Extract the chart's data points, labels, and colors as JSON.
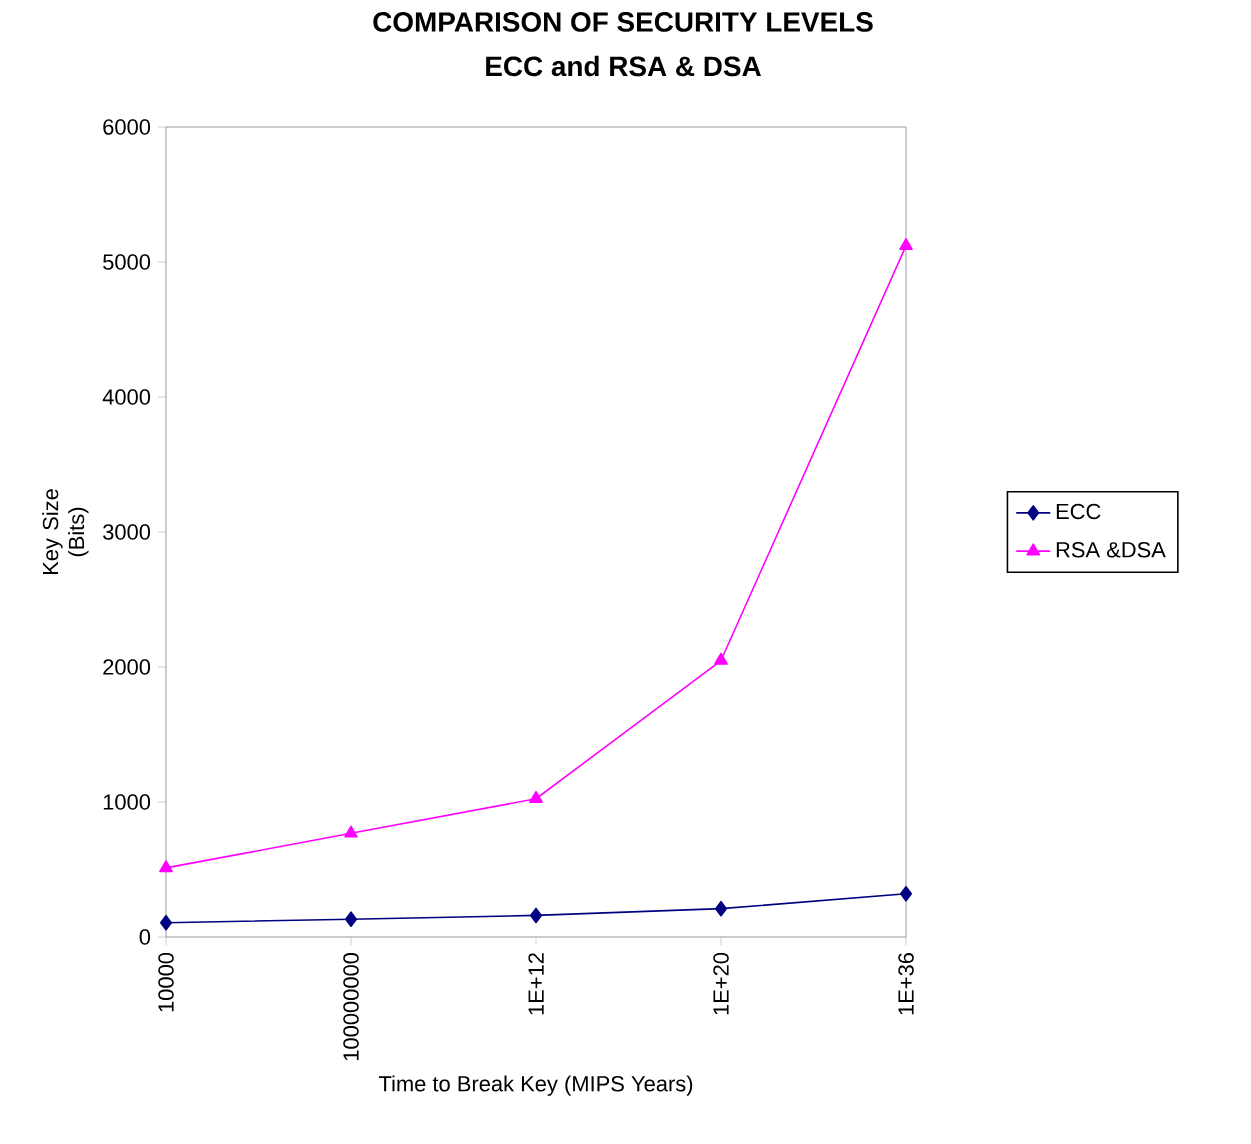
{
  "chart_data": {
    "type": "line",
    "title": "COMPARISON OF SECURITY LEVELS",
    "subtitle": "ECC and RSA & DSA",
    "xlabel": "Time to Break Key (MIPS Years)",
    "ylabel": "Key Size (Bits)",
    "categories": [
      "10000",
      "100000000",
      "1E+12",
      "1E+20",
      "1E+36"
    ],
    "series": [
      {
        "name": "ECC",
        "color": "#000080",
        "marker": "diamond",
        "values": [
          106,
          132,
          160,
          210,
          320
        ]
      },
      {
        "name": "RSA &DSA",
        "color": "#ff00ff",
        "marker": "triangle",
        "values": [
          512,
          768,
          1024,
          2048,
          5120
        ]
      }
    ],
    "ylim": [
      0,
      6000
    ],
    "yticks": [
      0,
      1000,
      2000,
      3000,
      4000,
      5000,
      6000
    ],
    "grid": false,
    "legend": "right"
  }
}
